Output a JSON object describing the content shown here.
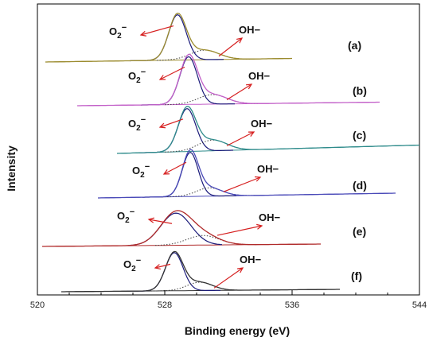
{
  "chart_data": {
    "type": "line",
    "xlabel": "Binding energy (eV)",
    "ylabel": "Intensity",
    "xlim": [
      520,
      544
    ],
    "xticks": [
      520,
      528,
      536,
      544
    ],
    "tick_labels": [
      "520",
      "528",
      "536",
      "544"
    ],
    "peak_labels": {
      "o2": "O",
      "o2_sub": "2",
      "o2_sup": "−",
      "oh": "OH−"
    },
    "grid": false,
    "series": [
      {
        "name": "(a)",
        "color": "#9b8b2e",
        "x_range": [
          520.5,
          536.0
        ],
        "baseline": [
          0.0,
          0.03
        ],
        "peak_center": 528.8,
        "peak_height": 0.38,
        "peak_width": 0.55,
        "oh_center": 530.5,
        "oh_height": 0.08,
        "oh_width": 0.9
      },
      {
        "name": "(b)",
        "color": "#c25fc8",
        "x_range": [
          522.5,
          541.5
        ],
        "baseline": [
          0.0,
          0.03
        ],
        "peak_center": 529.5,
        "peak_height": 0.4,
        "peak_width": 0.55,
        "oh_center": 531.0,
        "oh_height": 0.08,
        "oh_width": 0.9
      },
      {
        "name": "(c)",
        "color": "#2e8b8b",
        "x_range": [
          525.0,
          544.0
        ],
        "baseline": [
          0.0,
          0.07
        ],
        "peak_center": 529.4,
        "peak_height": 0.36,
        "peak_width": 0.55,
        "oh_center": 531.0,
        "oh_height": 0.09,
        "oh_width": 0.9
      },
      {
        "name": "(d)",
        "color": "#4a4ab8",
        "x_range": [
          523.8,
          542.5
        ],
        "baseline": [
          0.0,
          0.04
        ],
        "peak_center": 529.6,
        "peak_height": 0.37,
        "peak_width": 0.5,
        "oh_center": 530.8,
        "oh_height": 0.07,
        "oh_width": 0.8
      },
      {
        "name": "(e)",
        "color": "#b02a2a",
        "x_range": [
          520.3,
          537.8
        ],
        "baseline": [
          0.0,
          0.02
        ],
        "peak_center": 528.7,
        "peak_height": 0.27,
        "peak_width": 0.95,
        "oh_center": 530.4,
        "oh_height": 0.08,
        "oh_width": 1.0
      },
      {
        "name": "(f)",
        "color": "#333333",
        "x_range": [
          521.5,
          539.0
        ],
        "baseline": [
          0.0,
          0.02
        ],
        "peak_center": 528.6,
        "peak_height": 0.32,
        "peak_width": 0.55,
        "oh_center": 530.2,
        "oh_height": 0.07,
        "oh_width": 0.8
      }
    ]
  }
}
